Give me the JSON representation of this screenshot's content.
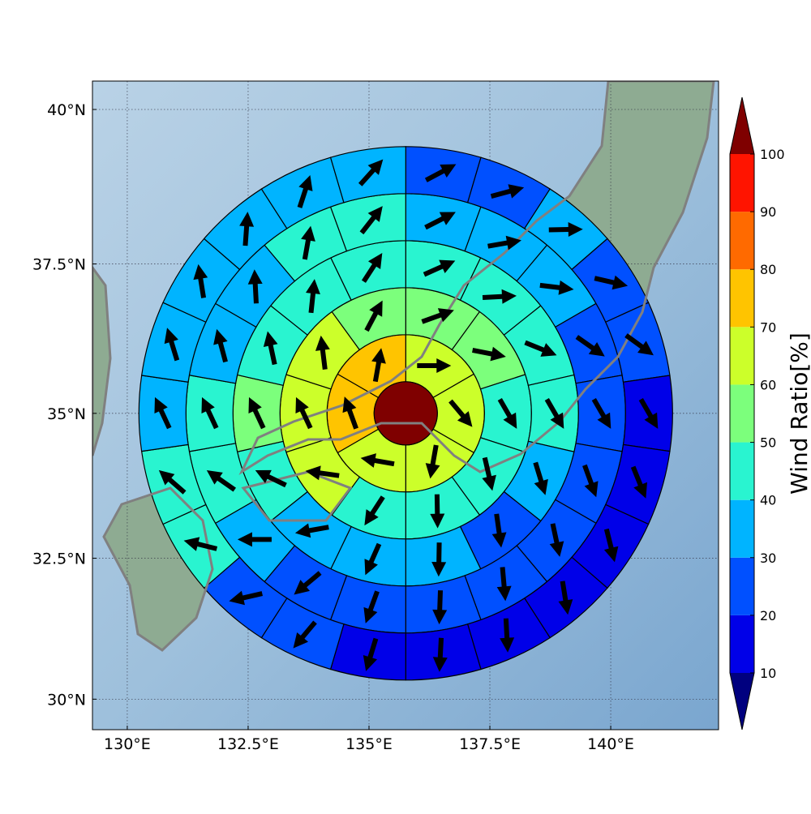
{
  "chart_data": {
    "type": "polar-grid-map",
    "xlim": [
      129.28,
      142.23
    ],
    "ylim": [
      29.45,
      40.45
    ],
    "projection": "mercator",
    "grid": true,
    "xticks": [
      {
        "value": 130,
        "label": "130°E"
      },
      {
        "value": 132.5,
        "label": "132.5°E"
      },
      {
        "value": 135,
        "label": "135°E"
      },
      {
        "value": 137.5,
        "label": "137.5°E"
      },
      {
        "value": 140,
        "label": "140°E"
      }
    ],
    "yticks": [
      {
        "value": 30,
        "label": "30°N"
      },
      {
        "value": 32.5,
        "label": "32.5°N"
      },
      {
        "value": 35,
        "label": "35°N"
      },
      {
        "value": 37.5,
        "label": "37.5°N"
      },
      {
        "value": 40,
        "label": "40°N"
      }
    ],
    "center": [
      135.76,
      35.0
    ],
    "center_value": 105,
    "rings": [
      {
        "values": [
          65,
          65,
          65,
          65,
          75,
          75
        ],
        "directions": [
          90,
          140,
          190,
          280,
          340,
          10
        ]
      },
      {
        "values": [
          55,
          55,
          45,
          45,
          45,
          45,
          65,
          65,
          65,
          55
        ],
        "directions": [
          70,
          101,
          150,
          167,
          179,
          213,
          278,
          335,
          353,
          28
        ]
      },
      {
        "values": [
          45,
          45,
          45,
          45,
          35,
          25,
          35,
          35,
          35,
          45,
          55,
          45,
          45,
          45
        ],
        "directions": [
          66,
          87,
          112,
          150,
          163,
          172,
          181,
          204,
          260,
          296,
          335,
          348,
          6,
          33
        ]
      },
      {
        "values": [
          35,
          35,
          35,
          25,
          25,
          25,
          25,
          25,
          25,
          25,
          25,
          35,
          45,
          45,
          35,
          35,
          45,
          45
        ],
        "directions": [
          63,
          80,
          97,
          125,
          150,
          160,
          168,
          175,
          182,
          200,
          230,
          270,
          305,
          335,
          345,
          357,
          10,
          38
        ]
      },
      {
        "values": [
          25,
          25,
          35,
          25,
          25,
          15,
          15,
          15,
          15,
          15,
          15,
          15,
          25,
          25,
          45,
          45,
          35,
          35,
          35,
          35,
          35,
          35
        ],
        "directions": [
          62,
          75,
          89,
          103,
          126,
          150,
          158,
          166,
          171,
          177,
          183,
          197,
          220,
          257,
          284,
          311,
          335,
          343,
          351,
          4,
          18,
          42
        ]
      }
    ],
    "colorbar": {
      "label": "Wind Ratio[%]",
      "ticks": [
        10,
        20,
        30,
        40,
        50,
        60,
        70,
        80,
        90,
        100
      ],
      "colors": [
        "#0000e8",
        "#0050ff",
        "#00b4ff",
        "#29f4d0",
        "#7cff7c",
        "#ccff2a",
        "#ffc400",
        "#ff6a00",
        "#ff1400"
      ],
      "under_color": "#00007f",
      "over_color": "#7f0000"
    }
  }
}
